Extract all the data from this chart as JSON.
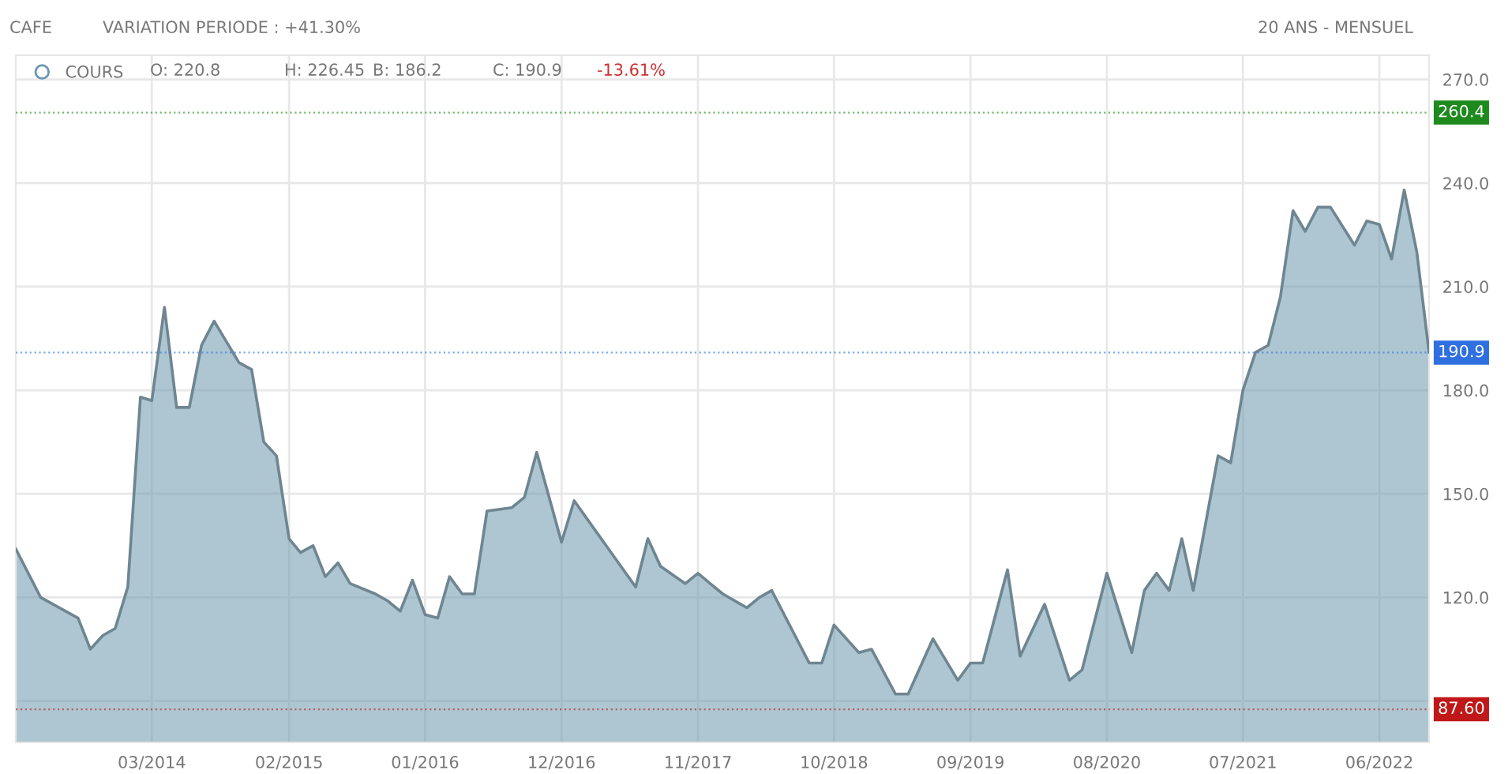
{
  "chart_data": {
    "type": "area",
    "title": "CAFE",
    "subtitle": "VARIATION PERIODE : +41.30%",
    "annotations": [
      "20 ANS - MENSUEL",
      "O: 220.8",
      "H: 226.45",
      "B: 186.2",
      "C: 190.9",
      "-13.61%"
    ],
    "series": [
      {
        "name": "COURS",
        "color": "#6a97ad",
        "x": [
          "2013-04",
          "2013-06",
          "2013-09",
          "2013-10",
          "2013-11",
          "2013-12",
          "2014-01",
          "2014-02",
          "2014-03",
          "2014-04",
          "2014-05",
          "2014-06",
          "2014-07",
          "2014-08",
          "2014-10",
          "2014-11",
          "2014-12",
          "2015-01",
          "2015-02",
          "2015-03",
          "2015-04",
          "2015-05",
          "2015-06",
          "2015-07",
          "2015-09",
          "2015-10",
          "2015-11",
          "2015-12",
          "2016-01",
          "2016-02",
          "2016-03",
          "2016-04",
          "2016-05",
          "2016-06",
          "2016-08",
          "2016-09",
          "2016-10",
          "2016-12",
          "2017-01",
          "2017-06",
          "2017-07",
          "2017-08",
          "2017-10",
          "2017-11",
          "2017-12",
          "2018-01",
          "2018-03",
          "2018-04",
          "2018-05",
          "2018-08",
          "2018-09",
          "2018-10",
          "2018-12",
          "2019-01",
          "2019-03",
          "2019-04",
          "2019-06",
          "2019-08",
          "2019-09",
          "2019-10",
          "2019-12",
          "2020-01",
          "2020-03",
          "2020-05",
          "2020-06",
          "2020-08",
          "2020-10",
          "2020-11",
          "2020-12",
          "2021-01",
          "2021-02",
          "2021-03",
          "2021-05",
          "2021-06",
          "2021-07",
          "2021-08",
          "2021-09",
          "2021-10",
          "2021-11",
          "2021-12",
          "2022-01",
          "2022-02",
          "2022-04",
          "2022-05",
          "2022-06",
          "2022-07",
          "2022-08",
          "2022-09",
          "2022-10"
        ],
        "values": [
          134,
          120,
          114,
          105,
          109,
          111,
          123,
          178,
          177,
          204,
          175,
          175,
          193,
          200,
          188,
          186,
          165,
          161,
          137,
          133,
          135,
          126,
          130,
          124,
          121,
          119,
          116,
          125,
          115,
          114,
          126,
          121,
          121,
          145,
          146,
          149,
          162,
          136,
          148,
          123,
          137,
          129,
          124,
          127,
          124,
          121,
          117,
          120,
          122,
          101,
          101,
          112,
          104,
          105,
          92,
          92,
          108,
          96,
          101,
          101,
          128,
          103,
          118,
          96,
          99,
          127,
          104,
          122,
          127,
          122,
          137,
          122,
          161,
          159,
          180,
          191,
          193,
          207,
          232,
          226,
          233,
          233,
          222,
          229,
          228,
          218,
          238,
          220,
          191
        ]
      }
    ],
    "xlim": [
      "2013-04",
      "2022-10"
    ],
    "xticks": [
      {
        "value": "2014-03",
        "label": "03/2014"
      },
      {
        "value": "2015-02",
        "label": "02/2015"
      },
      {
        "value": "2016-01",
        "label": "01/2016"
      },
      {
        "value": "2016-12",
        "label": "12/2016"
      },
      {
        "value": "2017-11",
        "label": "11/2017"
      },
      {
        "value": "2018-10",
        "label": "10/2018"
      },
      {
        "value": "2019-09",
        "label": "09/2019"
      },
      {
        "value": "2020-08",
        "label": "08/2020"
      },
      {
        "value": "2021-07",
        "label": "07/2021"
      },
      {
        "value": "2022-06",
        "label": "06/2022"
      }
    ],
    "ylim": [
      78,
      277
    ],
    "yticks": [
      {
        "value": 90,
        "label": null
      },
      {
        "value": 120,
        "label": "120.0"
      },
      {
        "value": 150,
        "label": "150.0"
      },
      {
        "value": 180,
        "label": "180.0"
      },
      {
        "value": 210,
        "label": "210.0"
      },
      {
        "value": 240,
        "label": "240.0"
      },
      {
        "value": 270,
        "label": "270.0"
      }
    ],
    "ref_lines": [
      {
        "axis": "y",
        "value": 260.4,
        "label": "260.4",
        "color": "#1e8a1e",
        "line_style": "dotted"
      },
      {
        "axis": "y",
        "value": 190.9,
        "label": "190.9",
        "color": "#2f6fe0",
        "line_style": "dotted"
      },
      {
        "axis": "y",
        "value": 87.6,
        "label": "87.60",
        "color": "#c01818",
        "line_style": "dotted"
      }
    ],
    "grid": true,
    "legend": "top left"
  }
}
